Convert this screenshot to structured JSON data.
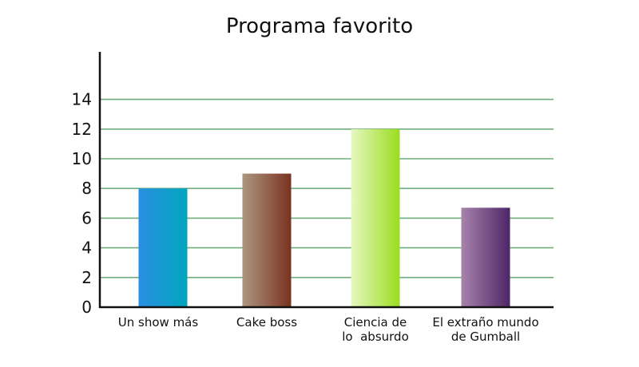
{
  "chart_data": {
    "type": "bar",
    "title": "Programa favorito",
    "xlabel": "",
    "ylabel": "",
    "categories": [
      [
        "Un show más"
      ],
      [
        "Cake boss"
      ],
      [
        "Ciencia de",
        "lo  absurdo"
      ],
      [
        "El extraño mundo",
        "de Gumball"
      ]
    ],
    "values": [
      8,
      9,
      12,
      6.7
    ],
    "ylim": [
      0,
      14
    ],
    "yticks": [
      0,
      2,
      4,
      6,
      8,
      10,
      12,
      14
    ],
    "grid": true,
    "legend": "none",
    "colors": {
      "grid": "#6fae7e",
      "axis": "#111111",
      "bars": [
        [
          "#2a8fe0",
          "#00a6bf"
        ],
        [
          "#ad9680",
          "#7a3220"
        ],
        [
          "#e6f8c2",
          "#9add1e"
        ],
        [
          "#a783ab",
          "#4e2567"
        ]
      ]
    }
  }
}
